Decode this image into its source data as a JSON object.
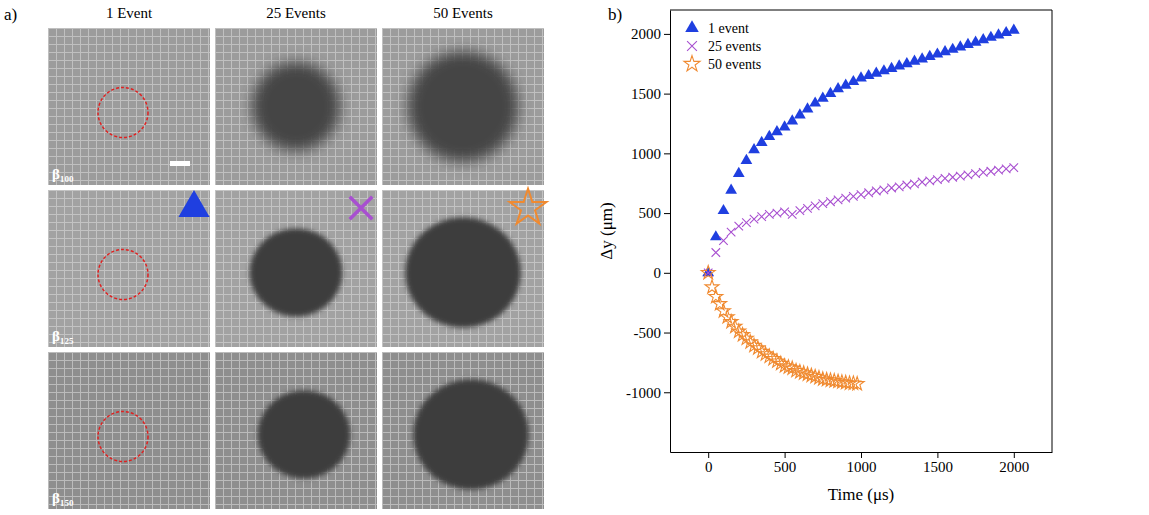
{
  "panel_labels": [
    "a)",
    "b)"
  ],
  "panel_a": {
    "columns": [
      "1 Event",
      "25 Events",
      "50 Events"
    ],
    "rows": [
      "β₁₀₀",
      "β₁₂₅",
      "β₁₅₀"
    ]
  },
  "chart_data": {
    "type": "scatter",
    "x_label": "Time (μs)",
    "y_label": "Δy (μm)",
    "xlim": [
      -250,
      2250
    ],
    "xticks": [
      0,
      500,
      1000,
      1500,
      2000
    ],
    "ylim": [
      -1500,
      2200
    ],
    "yticks": [
      -1000,
      -500,
      0,
      500,
      1000,
      1500,
      2000
    ],
    "grid": false,
    "legend": "top-left",
    "series": [
      {
        "name": "1 event",
        "color": "#1f3fe0",
        "marker": "triangle",
        "x": [
          0,
          50,
          100,
          150,
          200,
          250,
          300,
          350,
          400,
          450,
          500,
          550,
          600,
          650,
          700,
          750,
          800,
          850,
          900,
          950,
          1000,
          1050,
          1100,
          1150,
          1200,
          1250,
          1300,
          1350,
          1400,
          1450,
          1500,
          1550,
          1600,
          1650,
          1700,
          1750,
          1800,
          1850,
          1900,
          1950,
          2000
        ],
        "values": [
          0,
          300,
          520,
          690,
          830,
          940,
          1030,
          1090,
          1140,
          1180,
          1220,
          1270,
          1320,
          1370,
          1420,
          1460,
          1500,
          1540,
          1570,
          1600,
          1630,
          1650,
          1670,
          1690,
          1710,
          1730,
          1750,
          1770,
          1790,
          1810,
          1830,
          1850,
          1870,
          1890,
          1910,
          1930,
          1950,
          1970,
          1990,
          2010,
          2030
        ]
      },
      {
        "name": "25 events",
        "color": "#a84fd0",
        "marker": "x",
        "x": [
          0,
          50,
          100,
          150,
          200,
          250,
          300,
          350,
          400,
          450,
          500,
          550,
          600,
          650,
          700,
          750,
          800,
          850,
          900,
          950,
          1000,
          1050,
          1100,
          1150,
          1200,
          1250,
          1300,
          1350,
          1400,
          1450,
          1500,
          1550,
          1600,
          1650,
          1700,
          1750,
          1800,
          1850,
          1900,
          1950,
          2000
        ],
        "values": [
          0,
          170,
          270,
          340,
          390,
          420,
          450,
          470,
          490,
          500,
          510,
          490,
          520,
          540,
          560,
          580,
          595,
          610,
          625,
          640,
          655,
          670,
          685,
          695,
          710,
          720,
          735,
          745,
          760,
          770,
          780,
          790,
          800,
          810,
          820,
          830,
          840,
          850,
          860,
          870,
          880
        ]
      },
      {
        "name": "50 events",
        "color": "#f08a30",
        "marker": "star",
        "x": [
          0,
          25,
          50,
          75,
          100,
          125,
          150,
          175,
          200,
          225,
          250,
          275,
          300,
          325,
          350,
          375,
          400,
          425,
          450,
          475,
          500,
          525,
          550,
          575,
          600,
          625,
          650,
          675,
          700,
          725,
          750,
          775,
          800,
          825,
          850,
          875,
          900,
          925,
          950,
          975
        ],
        "values": [
          0,
          -120,
          -200,
          -260,
          -320,
          -370,
          -410,
          -450,
          -490,
          -520,
          -550,
          -580,
          -610,
          -630,
          -660,
          -680,
          -700,
          -720,
          -740,
          -760,
          -780,
          -790,
          -800,
          -820,
          -830,
          -840,
          -850,
          -860,
          -870,
          -880,
          -890,
          -895,
          -900,
          -905,
          -910,
          -915,
          -920,
          -925,
          -925,
          -930
        ]
      }
    ]
  }
}
